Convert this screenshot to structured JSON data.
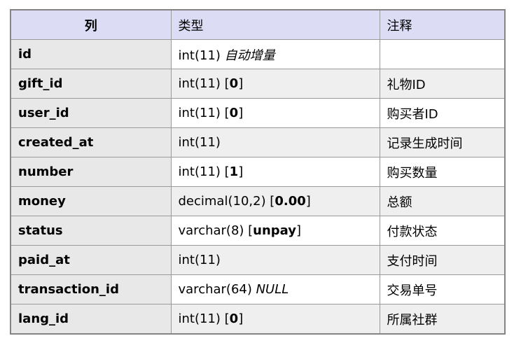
{
  "table": {
    "headers": [
      {
        "label": "列"
      },
      {
        "label": "类型"
      },
      {
        "label": "注释"
      }
    ],
    "rows": [
      {
        "name": "id",
        "type_parts": [
          {
            "t": "int(11) "
          },
          {
            "t": "自动增量",
            "i": true
          }
        ],
        "comment": ""
      },
      {
        "name": "gift_id",
        "type_parts": [
          {
            "t": "int(11) ["
          },
          {
            "t": "0",
            "b": true
          },
          {
            "t": "]"
          }
        ],
        "comment": "礼物ID"
      },
      {
        "name": "user_id",
        "type_parts": [
          {
            "t": "int(11) ["
          },
          {
            "t": "0",
            "b": true
          },
          {
            "t": "]"
          }
        ],
        "comment": "购买者ID"
      },
      {
        "name": "created_at",
        "type_parts": [
          {
            "t": "int(11)"
          }
        ],
        "comment": "记录生成时间"
      },
      {
        "name": "number",
        "type_parts": [
          {
            "t": "int(11) ["
          },
          {
            "t": "1",
            "b": true
          },
          {
            "t": "]"
          }
        ],
        "comment": "购买数量"
      },
      {
        "name": "money",
        "type_parts": [
          {
            "t": "decimal(10,2) ["
          },
          {
            "t": "0.00",
            "b": true
          },
          {
            "t": "]"
          }
        ],
        "comment": "总额"
      },
      {
        "name": "status",
        "type_parts": [
          {
            "t": "varchar(8) ["
          },
          {
            "t": "unpay",
            "b": true
          },
          {
            "t": "]"
          }
        ],
        "comment": "付款状态"
      },
      {
        "name": "paid_at",
        "type_parts": [
          {
            "t": "int(11)"
          }
        ],
        "comment": "支付时间"
      },
      {
        "name": "transaction_id",
        "type_parts": [
          {
            "t": "varchar(64) "
          },
          {
            "t": "NULL",
            "i": true
          }
        ],
        "comment": "交易单号"
      },
      {
        "name": "lang_id",
        "type_parts": [
          {
            "t": "int(11) ["
          },
          {
            "t": "0",
            "b": true
          },
          {
            "t": "]"
          }
        ],
        "comment": "所属社群"
      }
    ]
  },
  "colors": {
    "header_bg": "#dcddf5",
    "row_label_bg": "#e8e8e8",
    "zebra_bg": "#efefef",
    "border": "#999999",
    "outer_border": "#848484"
  }
}
